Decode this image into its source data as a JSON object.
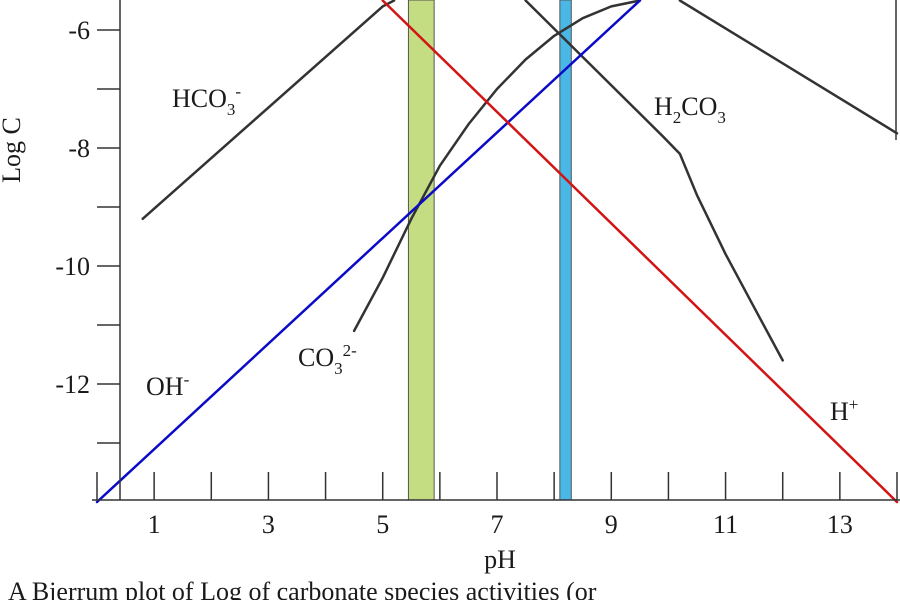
{
  "chart_data": {
    "type": "line",
    "xlabel": "pH",
    "ylabel": "Log C",
    "xlim": [
      0,
      14
    ],
    "ylim": [
      -14,
      -5.5
    ],
    "x_ticks": [
      1,
      3,
      5,
      7,
      9,
      11,
      13
    ],
    "y_ticks": [
      -6,
      -8,
      -10,
      -12
    ],
    "y_minor_ticks": [
      -7,
      -9,
      -11,
      -13
    ],
    "caption": "A Bjerrum plot of Log of carbonate species activities (or",
    "series": [
      {
        "name": "HCO3-",
        "label": {
          "base": "HCO",
          "sub": "3",
          "sup": "-"
        },
        "color": "#333333",
        "points": [
          [
            0.8,
            -9.2
          ],
          [
            5.0,
            -5.6
          ],
          [
            5.2,
            -5.5
          ]
        ]
      },
      {
        "name": "HCO3- (upper)",
        "color": "#333333",
        "points": [
          [
            10.2,
            -5.5
          ],
          [
            14.0,
            -7.75
          ]
        ]
      },
      {
        "name": "H2CO3",
        "label": {
          "base": "H",
          "sub": "2",
          "mid": "CO",
          "sub2": "3"
        },
        "color": "#333333",
        "points": [
          [
            7.5,
            -5.5
          ],
          [
            9.9,
            -7.8
          ],
          [
            10.2,
            -8.1
          ],
          [
            10.5,
            -8.8
          ],
          [
            11.0,
            -9.8
          ],
          [
            11.5,
            -10.7
          ],
          [
            12.0,
            -11.6
          ]
        ]
      },
      {
        "name": "CO3 2-",
        "label": {
          "base": "CO",
          "sub": "3",
          "sup": "2-"
        },
        "color": "#333333",
        "points": [
          [
            4.5,
            -11.1
          ],
          [
            5.0,
            -10.2
          ],
          [
            5.5,
            -9.2
          ],
          [
            6.0,
            -8.3
          ],
          [
            6.5,
            -7.6
          ],
          [
            7.0,
            -7.0
          ],
          [
            7.5,
            -6.5
          ],
          [
            8.0,
            -6.1
          ],
          [
            8.5,
            -5.8
          ],
          [
            9.0,
            -5.6
          ],
          [
            9.5,
            -5.5
          ]
        ]
      },
      {
        "name": "OH-",
        "label": {
          "base": "OH",
          "sup": "-"
        },
        "color": "#0a0ac8",
        "points": [
          [
            0.0,
            -14.0
          ],
          [
            9.5,
            -5.5
          ]
        ]
      },
      {
        "name": "H+",
        "label": {
          "base": "H",
          "sup": "+"
        },
        "color": "#d21414",
        "points": [
          [
            5.0,
            -5.5
          ],
          [
            14.0,
            -14.0
          ]
        ]
      }
    ],
    "bands": [
      {
        "x_from": 5.45,
        "x_to": 5.9,
        "color": "#c4dc82"
      },
      {
        "x_from": 8.1,
        "x_to": 8.3,
        "color": "#4ab8e6"
      }
    ]
  }
}
